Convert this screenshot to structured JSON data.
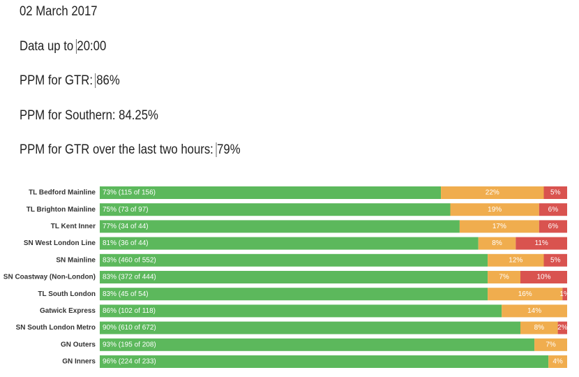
{
  "header": [
    {
      "text": "02 March 2017"
    },
    {
      "text": "Data up to",
      "value": "20:00"
    },
    {
      "text": "PPM for GTR:",
      "value": "86%"
    },
    {
      "text": "PPM for Southern: 84.25%"
    },
    {
      "text": "PPM for GTR over the last two hours:",
      "value": "79%"
    }
  ],
  "chart_data": {
    "type": "stacked-bar-horizontal",
    "categories": [
      "TL Bedford Mainline",
      "TL Brighton Mainline",
      "TL Kent Inner",
      "SN West London Line",
      "SN Mainline",
      "SN Coastway (Non-London)",
      "TL South London",
      "Gatwick Express",
      "SN South London Metro",
      "GN Outers",
      "GN Inners"
    ],
    "series": [
      {
        "color": "#5cb85c",
        "values": [
          73,
          75,
          77,
          81,
          83,
          83,
          83,
          86,
          90,
          93,
          96
        ],
        "value_labels": [
          "73% (115 of 156)",
          "75% (73 of 97)",
          "77% (34 of 44)",
          "81% (36 of 44)",
          "83% (460 of 552)",
          "83% (372 of 444)",
          "83% (45 of 54)",
          "86% (102 of 118)",
          "90% (610 of 672)",
          "93% (195 of 208)",
          "96% (224 of 233)"
        ]
      },
      {
        "color": "#f0ad4e",
        "values": [
          22,
          19,
          17,
          8,
          12,
          7,
          16,
          14,
          8,
          7,
          4
        ],
        "value_labels": [
          "22%",
          "19%",
          "17%",
          "8%",
          "12%",
          "7%",
          "16%",
          "14%",
          "8%",
          "7%",
          "4%"
        ]
      },
      {
        "color": "#d9534f",
        "values": [
          5,
          6,
          6,
          11,
          5,
          10,
          1,
          null,
          2,
          null,
          null
        ],
        "value_labels": [
          "5%",
          "6%",
          "6%",
          "11%",
          "5%",
          "10%",
          "1%",
          null,
          "2%",
          null,
          null
        ]
      }
    ]
  }
}
